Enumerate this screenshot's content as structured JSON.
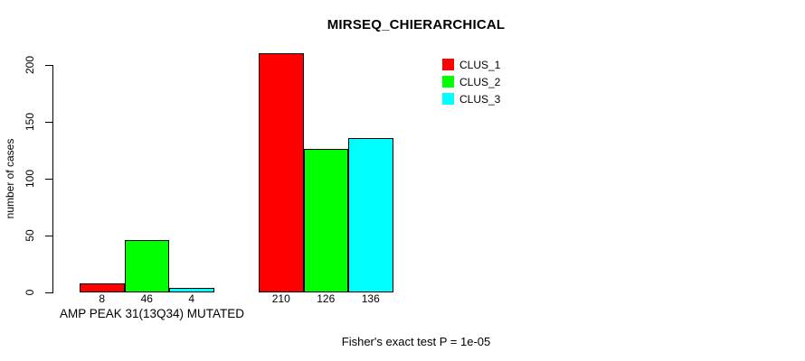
{
  "chart_data": {
    "type": "bar",
    "title": "MIRSEQ_CHIERARCHICAL",
    "ylabel": "number of cases",
    "xlabel": "AMP PEAK 31(13Q34) MUTATED",
    "categories": [
      "AMP PEAK 31(13Q34) MUTATED",
      ""
    ],
    "series": [
      {
        "name": "CLUS_1",
        "color": "#ff0000",
        "values": [
          8,
          210
        ]
      },
      {
        "name": "CLUS_2",
        "color": "#00ff00",
        "values": [
          46,
          126
        ]
      },
      {
        "name": "CLUS_3",
        "color": "#00ffff",
        "values": [
          4,
          136
        ]
      }
    ],
    "bar_value_labels": [
      [
        "8",
        "46",
        "4"
      ],
      [
        "210",
        "126",
        "136"
      ]
    ],
    "yticks": [
      0,
      50,
      100,
      150,
      200
    ],
    "ylim": [
      0,
      210
    ],
    "grid": false,
    "legend_position": "top-right",
    "bar_border_color": "#000000",
    "annotation": "Fisher's exact test P = 1e-05"
  }
}
